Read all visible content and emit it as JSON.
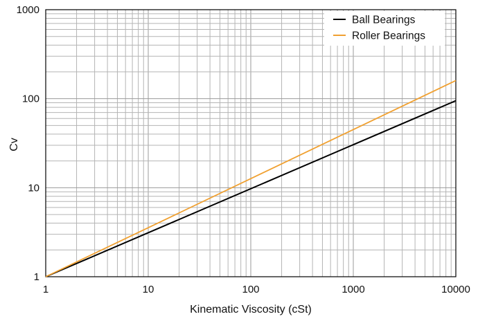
{
  "chart_data": {
    "type": "line",
    "xlabel": "Kinematic Viscosity (cSt)",
    "ylabel": "Cv",
    "xscale": "log",
    "yscale": "log",
    "xlim": [
      1,
      10000
    ],
    "ylim": [
      1,
      1000
    ],
    "x_ticks": [
      1,
      10,
      100,
      1000,
      10000
    ],
    "x_tick_labels": [
      "1",
      "10",
      "100",
      "1000",
      "10000"
    ],
    "y_ticks": [
      1,
      10,
      100,
      1000
    ],
    "y_tick_labels": [
      "1",
      "10",
      "100",
      "1000"
    ],
    "grid": true,
    "legend_position": "top-right",
    "series": [
      {
        "name": "Ball Bearings",
        "color": "#000000",
        "x": [
          1,
          10000
        ],
        "y": [
          1,
          95
        ]
      },
      {
        "name": "Roller Bearings",
        "color": "#f0a030",
        "x": [
          1,
          10000
        ],
        "y": [
          1,
          160
        ]
      }
    ]
  }
}
